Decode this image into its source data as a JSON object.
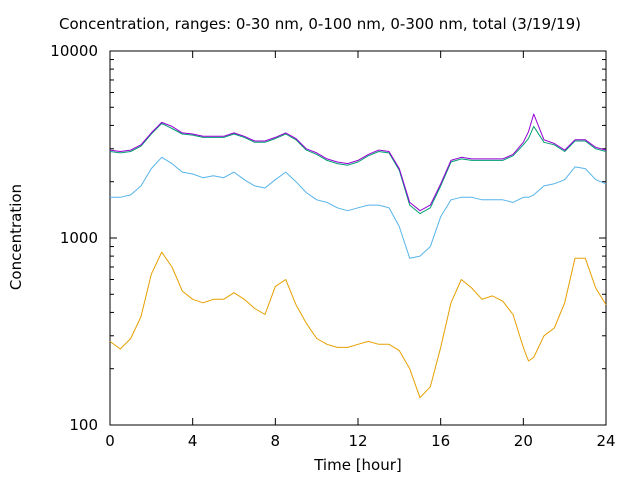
{
  "chart_data": {
    "type": "line",
    "title": "Concentration, ranges: 0-30 nm, 0-100 nm, 0-300 nm, total (3/19/19)",
    "xlabel": "Time [hour]",
    "ylabel": "Concentration",
    "xlim": [
      0,
      24
    ],
    "ylim": [
      100,
      10000
    ],
    "yscale": "log",
    "xticks": [
      0,
      4,
      8,
      12,
      16,
      20,
      24
    ],
    "yticks": [
      100,
      1000,
      10000
    ],
    "ytick_labels": [
      "100",
      "1000",
      "10000"
    ],
    "grid": false,
    "x": [
      0,
      0.5,
      1,
      1.5,
      2,
      2.5,
      3,
      3.5,
      4,
      4.5,
      5,
      5.5,
      6,
      6.5,
      7,
      7.5,
      8,
      8.5,
      9,
      9.5,
      10,
      10.5,
      11,
      11.5,
      12,
      12.5,
      13,
      13.5,
      14,
      14.5,
      15,
      15.5,
      16,
      16.5,
      17,
      17.5,
      18,
      18.5,
      19,
      19.5,
      20,
      20.25,
      20.5,
      21,
      21.5,
      22,
      22.5,
      23,
      23.5,
      24
    ],
    "series": [
      {
        "color": "#e69f00",
        "values": [
          280,
          255,
          290,
          380,
          640,
          840,
          700,
          520,
          470,
          450,
          470,
          470,
          510,
          470,
          420,
          390,
          550,
          600,
          440,
          350,
          290,
          270,
          260,
          260,
          270,
          280,
          270,
          270,
          250,
          200,
          140,
          160,
          260,
          450,
          600,
          540,
          470,
          490,
          460,
          390,
          260,
          220,
          230,
          300,
          330,
          450,
          780,
          780,
          540,
          440
        ]
      },
      {
        "color": "#56b4e9",
        "values": [
          1650,
          1650,
          1700,
          1900,
          2350,
          2700,
          2500,
          2250,
          2200,
          2100,
          2150,
          2100,
          2250,
          2050,
          1900,
          1850,
          2050,
          2250,
          2000,
          1750,
          1600,
          1550,
          1450,
          1400,
          1450,
          1500,
          1500,
          1450,
          1150,
          780,
          800,
          900,
          1300,
          1600,
          1650,
          1650,
          1600,
          1600,
          1600,
          1550,
          1650,
          1650,
          1700,
          1900,
          1950,
          2050,
          2400,
          2350,
          2050,
          1950
        ]
      },
      {
        "color": "#009e73",
        "values": [
          2900,
          2850,
          2900,
          3100,
          3600,
          4100,
          3850,
          3600,
          3550,
          3450,
          3450,
          3450,
          3600,
          3450,
          3250,
          3250,
          3400,
          3600,
          3350,
          2950,
          2800,
          2600,
          2500,
          2450,
          2550,
          2750,
          2900,
          2850,
          2300,
          1500,
          1350,
          1450,
          1900,
          2550,
          2650,
          2600,
          2600,
          2600,
          2600,
          2750,
          3150,
          3400,
          3950,
          3250,
          3150,
          2900,
          3300,
          3300,
          3000,
          2900
        ]
      },
      {
        "color": "#9400d3",
        "values": [
          2950,
          2900,
          2950,
          3150,
          3650,
          4150,
          3950,
          3650,
          3600,
          3500,
          3500,
          3500,
          3650,
          3500,
          3300,
          3300,
          3450,
          3650,
          3400,
          3000,
          2850,
          2650,
          2550,
          2500,
          2600,
          2800,
          2950,
          2900,
          2350,
          1550,
          1400,
          1500,
          1950,
          2600,
          2700,
          2650,
          2650,
          2650,
          2650,
          2800,
          3250,
          3700,
          4600,
          3350,
          3200,
          2950,
          3350,
          3350,
          3050,
          2950
        ]
      }
    ]
  }
}
